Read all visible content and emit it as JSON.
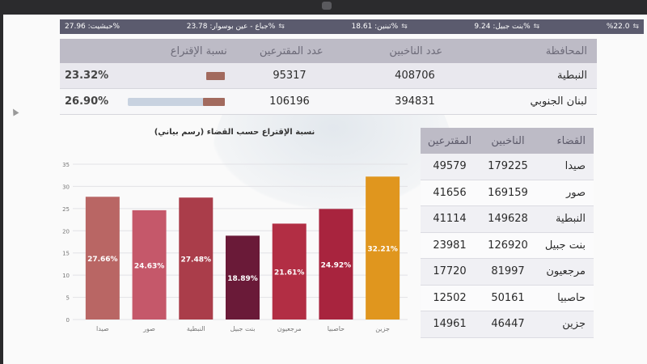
{
  "ticker": [
    {
      "label": "%22.0",
      "arrow": "⇆"
    },
    {
      "label": "بنت جبيل: 9.24%",
      "arrow": "⇆"
    },
    {
      "label": "تبنين: 18.61%",
      "arrow": "⇆"
    },
    {
      "label": "جباع - عين بوسوار: 23.78%",
      "arrow": "⇆"
    },
    {
      "label": "حبشيت: 27.96%",
      "arrow": ""
    }
  ],
  "governorates": {
    "headers": {
      "name": "المحافظة",
      "voters": "عدد الناخبين",
      "participants": "عدد المقترعين",
      "turnout": "نسبة الإقتراع"
    },
    "rows": [
      {
        "name": "النبطية",
        "voters": "408706",
        "participants": "95317",
        "turnout": "23.32%",
        "turnout_value": 23.32
      },
      {
        "name": "لبنان الجنوبي",
        "voters": "394831",
        "participants": "106196",
        "turnout": "26.90%",
        "turnout_value": 26.9
      }
    ]
  },
  "districts": {
    "headers": {
      "name": "القضاء",
      "voters": "الناخبين",
      "participants": "المقترعين"
    },
    "rows": [
      {
        "name": "صيدا",
        "voters": "179225",
        "participants": "49579"
      },
      {
        "name": "صور",
        "voters": "169159",
        "participants": "41656"
      },
      {
        "name": "النبطية",
        "voters": "149628",
        "participants": "41114"
      },
      {
        "name": "بنت جبيل",
        "voters": "126920",
        "participants": "23981"
      },
      {
        "name": "مرجعيون",
        "voters": "81997",
        "participants": "17720"
      },
      {
        "name": "حاصبيا",
        "voters": "50161",
        "participants": "12502"
      },
      {
        "name": "جزين",
        "voters": "46447",
        "participants": "14961"
      }
    ]
  },
  "chart_data": {
    "type": "bar",
    "title": "نسبة الإقتراع حسب القضاء (رسم بياني)",
    "categories": [
      "صيدا",
      "صور",
      "النبطية",
      "بنت جبيل",
      "مرجعيون",
      "حاصبيا",
      "جزين"
    ],
    "values": [
      27.66,
      24.63,
      27.48,
      18.89,
      21.61,
      24.92,
      32.21
    ],
    "labels": [
      "27.66%",
      "24.63%",
      "27.48%",
      "18.89%",
      "21.61%",
      "24.92%",
      "32.21%"
    ],
    "colors": [
      "#b96664",
      "#c5586a",
      "#aa3d4a",
      "#6a1a38",
      "#b22e44",
      "#a8243e",
      "#e0961e"
    ],
    "ylim": [
      0,
      35
    ],
    "yticks": [
      "0",
      "5",
      "10",
      "15",
      "20",
      "25",
      "30",
      "35"
    ],
    "grid": true,
    "xlabel": "",
    "ylabel": ""
  },
  "colors": {
    "header_bg": "#bdbbc6",
    "ticker_bg": "#5b5b6e",
    "bar_fill": "#a26a5e"
  }
}
